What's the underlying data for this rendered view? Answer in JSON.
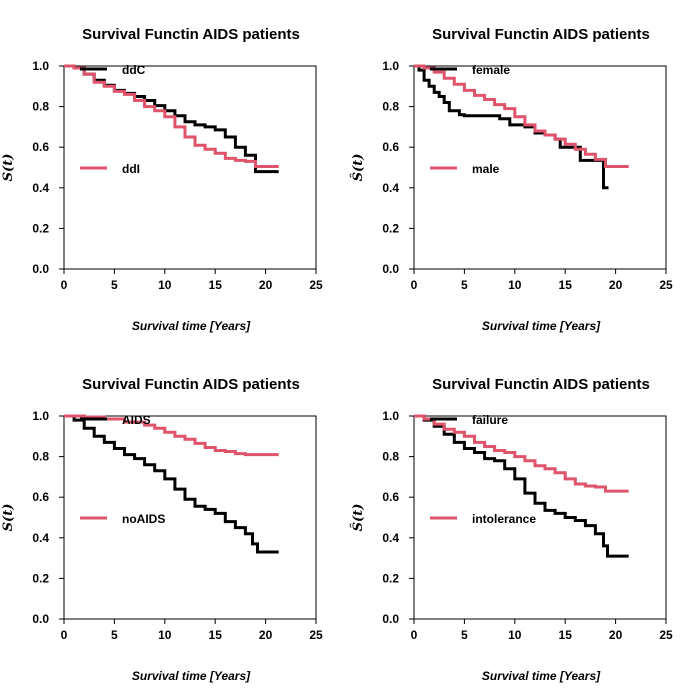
{
  "colors": {
    "black": "#000000",
    "red": "#DF536B"
  },
  "chart_data": [
    {
      "type": "line",
      "title": "Survival Functin AIDS patients",
      "xlabel": "Survival time [Years]",
      "ylabel": "S(t)",
      "xlim": [
        0,
        25
      ],
      "ylim": [
        0,
        1
      ],
      "xticks": [
        "0",
        "5",
        "10",
        "15",
        "20",
        "25"
      ],
      "yticks": [
        "0.0",
        "0.2",
        "0.4",
        "0.6",
        "0.8",
        "1.0"
      ],
      "grid": false,
      "series": [
        {
          "name": "ddC",
          "color": "#000000",
          "points": [
            [
              0,
              1.0
            ],
            [
              1,
              0.99
            ],
            [
              2,
              0.96
            ],
            [
              3,
              0.93
            ],
            [
              4,
              0.905
            ],
            [
              5,
              0.88
            ],
            [
              6,
              0.865
            ],
            [
              7,
              0.85
            ],
            [
              8,
              0.83
            ],
            [
              9,
              0.805
            ],
            [
              10,
              0.78
            ],
            [
              11,
              0.755
            ],
            [
              12,
              0.725
            ],
            [
              13,
              0.71
            ],
            [
              14,
              0.7
            ],
            [
              15,
              0.685
            ],
            [
              16,
              0.65
            ],
            [
              17,
              0.6
            ],
            [
              18,
              0.56
            ],
            [
              19,
              0.48
            ],
            [
              21.3,
              0.48
            ]
          ]
        },
        {
          "name": "ddI",
          "color": "#DF536B",
          "points": [
            [
              0,
              1.0
            ],
            [
              1,
              0.99
            ],
            [
              2,
              0.96
            ],
            [
              3,
              0.92
            ],
            [
              4,
              0.9
            ],
            [
              5,
              0.875
            ],
            [
              6,
              0.86
            ],
            [
              7,
              0.83
            ],
            [
              8,
              0.8
            ],
            [
              9,
              0.78
            ],
            [
              10,
              0.75
            ],
            [
              11,
              0.7
            ],
            [
              12,
              0.65
            ],
            [
              13,
              0.61
            ],
            [
              14,
              0.59
            ],
            [
              15,
              0.57
            ],
            [
              16,
              0.545
            ],
            [
              17,
              0.535
            ],
            [
              18,
              0.53
            ],
            [
              19,
              0.505
            ],
            [
              21.3,
              0.505
            ]
          ]
        }
      ]
    },
    {
      "type": "line",
      "title": "Survival Functin AIDS patients",
      "xlabel": "Survival time [Years]",
      "ylabel": "Ŝ(t)",
      "xlim": [
        0,
        25
      ],
      "ylim": [
        0,
        1
      ],
      "xticks": [
        "0",
        "5",
        "10",
        "15",
        "20",
        "25"
      ],
      "yticks": [
        "0.0",
        "0.2",
        "0.4",
        "0.6",
        "0.8",
        "1.0"
      ],
      "grid": false,
      "series": [
        {
          "name": "female",
          "color": "#000000",
          "points": [
            [
              0,
              1.0
            ],
            [
              0.5,
              0.98
            ],
            [
              1,
              0.93
            ],
            [
              1.5,
              0.9
            ],
            [
              2,
              0.87
            ],
            [
              2.5,
              0.85
            ],
            [
              3,
              0.82
            ],
            [
              3.5,
              0.78
            ],
            [
              4.5,
              0.76
            ],
            [
              5,
              0.755
            ],
            [
              7,
              0.755
            ],
            [
              8.5,
              0.74
            ],
            [
              9.5,
              0.71
            ],
            [
              11,
              0.7
            ],
            [
              12,
              0.67
            ],
            [
              13,
              0.66
            ],
            [
              14,
              0.64
            ],
            [
              14.5,
              0.6
            ],
            [
              16,
              0.6
            ],
            [
              16.5,
              0.535
            ],
            [
              18.5,
              0.535
            ],
            [
              18.8,
              0.4
            ],
            [
              19.3,
              0.4
            ]
          ]
        },
        {
          "name": "male",
          "color": "#DF536B",
          "points": [
            [
              0,
              1.0
            ],
            [
              1,
              0.99
            ],
            [
              2,
              0.97
            ],
            [
              3,
              0.94
            ],
            [
              4,
              0.91
            ],
            [
              5,
              0.88
            ],
            [
              6,
              0.855
            ],
            [
              7,
              0.835
            ],
            [
              8,
              0.81
            ],
            [
              9,
              0.79
            ],
            [
              10,
              0.75
            ],
            [
              11,
              0.71
            ],
            [
              12,
              0.68
            ],
            [
              13,
              0.66
            ],
            [
              14,
              0.64
            ],
            [
              15,
              0.615
            ],
            [
              16,
              0.59
            ],
            [
              17,
              0.565
            ],
            [
              18,
              0.54
            ],
            [
              19,
              0.505
            ],
            [
              21.3,
              0.505
            ]
          ]
        }
      ]
    },
    {
      "type": "line",
      "title": "Survival Functin AIDS patients",
      "xlabel": "Survival time [Years]",
      "ylabel": "S(t)",
      "xlim": [
        0,
        25
      ],
      "ylim": [
        0,
        1
      ],
      "xticks": [
        "0",
        "5",
        "10",
        "15",
        "20",
        "25"
      ],
      "yticks": [
        "0.0",
        "0.2",
        "0.4",
        "0.6",
        "0.8",
        "1.0"
      ],
      "grid": false,
      "series": [
        {
          "name": "AIDS",
          "color": "#000000",
          "points": [
            [
              0,
              1.0
            ],
            [
              1,
              0.98
            ],
            [
              2,
              0.94
            ],
            [
              3,
              0.9
            ],
            [
              4,
              0.87
            ],
            [
              5,
              0.84
            ],
            [
              6,
              0.81
            ],
            [
              7,
              0.79
            ],
            [
              8,
              0.76
            ],
            [
              9,
              0.73
            ],
            [
              10,
              0.69
            ],
            [
              11,
              0.64
            ],
            [
              12,
              0.59
            ],
            [
              13,
              0.555
            ],
            [
              14,
              0.54
            ],
            [
              15,
              0.52
            ],
            [
              16,
              0.48
            ],
            [
              17,
              0.45
            ],
            [
              18,
              0.42
            ],
            [
              18.7,
              0.37
            ],
            [
              19.2,
              0.33
            ],
            [
              21.3,
              0.33
            ]
          ]
        },
        {
          "name": "noAIDS",
          "color": "#DF536B",
          "points": [
            [
              0,
              1.0
            ],
            [
              2,
              0.995
            ],
            [
              4,
              0.985
            ],
            [
              6,
              0.97
            ],
            [
              8,
              0.955
            ],
            [
              9,
              0.94
            ],
            [
              10,
              0.92
            ],
            [
              11,
              0.9
            ],
            [
              12,
              0.885
            ],
            [
              13,
              0.865
            ],
            [
              14,
              0.845
            ],
            [
              15,
              0.83
            ],
            [
              16,
              0.825
            ],
            [
              17,
              0.815
            ],
            [
              18,
              0.81
            ],
            [
              21.3,
              0.81
            ]
          ]
        }
      ]
    },
    {
      "type": "line",
      "title": "Survival Functin AIDS patients",
      "xlabel": "Survival time [Years]",
      "ylabel": "Ŝ(t)",
      "xlim": [
        0,
        25
      ],
      "ylim": [
        0,
        1
      ],
      "xticks": [
        "0",
        "5",
        "10",
        "15",
        "20",
        "25"
      ],
      "yticks": [
        "0.0",
        "0.2",
        "0.4",
        "0.6",
        "0.8",
        "1.0"
      ],
      "grid": false,
      "series": [
        {
          "name": "failure",
          "color": "#000000",
          "points": [
            [
              0,
              1.0
            ],
            [
              1,
              0.98
            ],
            [
              2,
              0.95
            ],
            [
              3,
              0.91
            ],
            [
              4,
              0.87
            ],
            [
              5,
              0.84
            ],
            [
              6,
              0.82
            ],
            [
              7,
              0.79
            ],
            [
              8,
              0.78
            ],
            [
              9,
              0.74
            ],
            [
              10,
              0.69
            ],
            [
              11,
              0.62
            ],
            [
              12,
              0.57
            ],
            [
              13,
              0.535
            ],
            [
              14,
              0.52
            ],
            [
              15,
              0.5
            ],
            [
              16,
              0.485
            ],
            [
              17,
              0.46
            ],
            [
              18,
              0.42
            ],
            [
              18.8,
              0.36
            ],
            [
              19.2,
              0.31
            ],
            [
              21.3,
              0.31
            ]
          ]
        },
        {
          "name": "intolerance",
          "color": "#DF536B",
          "points": [
            [
              0,
              1.0
            ],
            [
              1,
              0.985
            ],
            [
              2,
              0.96
            ],
            [
              3,
              0.935
            ],
            [
              4,
              0.92
            ],
            [
              5,
              0.9
            ],
            [
              6,
              0.87
            ],
            [
              7,
              0.85
            ],
            [
              8,
              0.83
            ],
            [
              9,
              0.82
            ],
            [
              10,
              0.8
            ],
            [
              11,
              0.78
            ],
            [
              12,
              0.755
            ],
            [
              13,
              0.74
            ],
            [
              14,
              0.72
            ],
            [
              15,
              0.69
            ],
            [
              16,
              0.665
            ],
            [
              17,
              0.655
            ],
            [
              18,
              0.65
            ],
            [
              19,
              0.63
            ],
            [
              21.3,
              0.63
            ]
          ]
        }
      ]
    }
  ]
}
